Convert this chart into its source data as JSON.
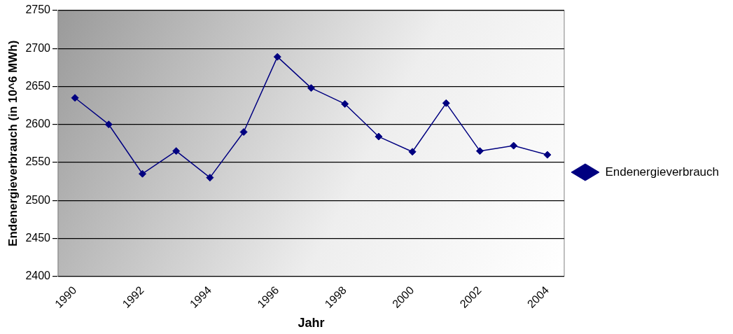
{
  "chart_data": {
    "type": "line",
    "xlabel": "Jahr",
    "ylabel": "Endenergieverbrauch (in 10^6 MWh)",
    "categories": [
      "1990",
      null,
      "1992",
      null,
      "1994",
      null,
      "1996",
      null,
      "1998",
      null,
      "2000",
      null,
      "2002",
      null,
      "2004"
    ],
    "series": [
      {
        "name": "Endenergieverbrauch",
        "color": "#000080",
        "values": [
          2635,
          2600,
          2535,
          2565,
          2530,
          2590,
          2689,
          2648,
          2627,
          2584,
          2564,
          2628,
          2565,
          2572,
          2560
        ]
      }
    ],
    "ylim": [
      2400,
      2750
    ],
    "yticks": [
      2400,
      2450,
      2500,
      2550,
      2600,
      2650,
      2700,
      2750
    ],
    "grid": "y",
    "legend": "right",
    "marker": "diamond"
  }
}
